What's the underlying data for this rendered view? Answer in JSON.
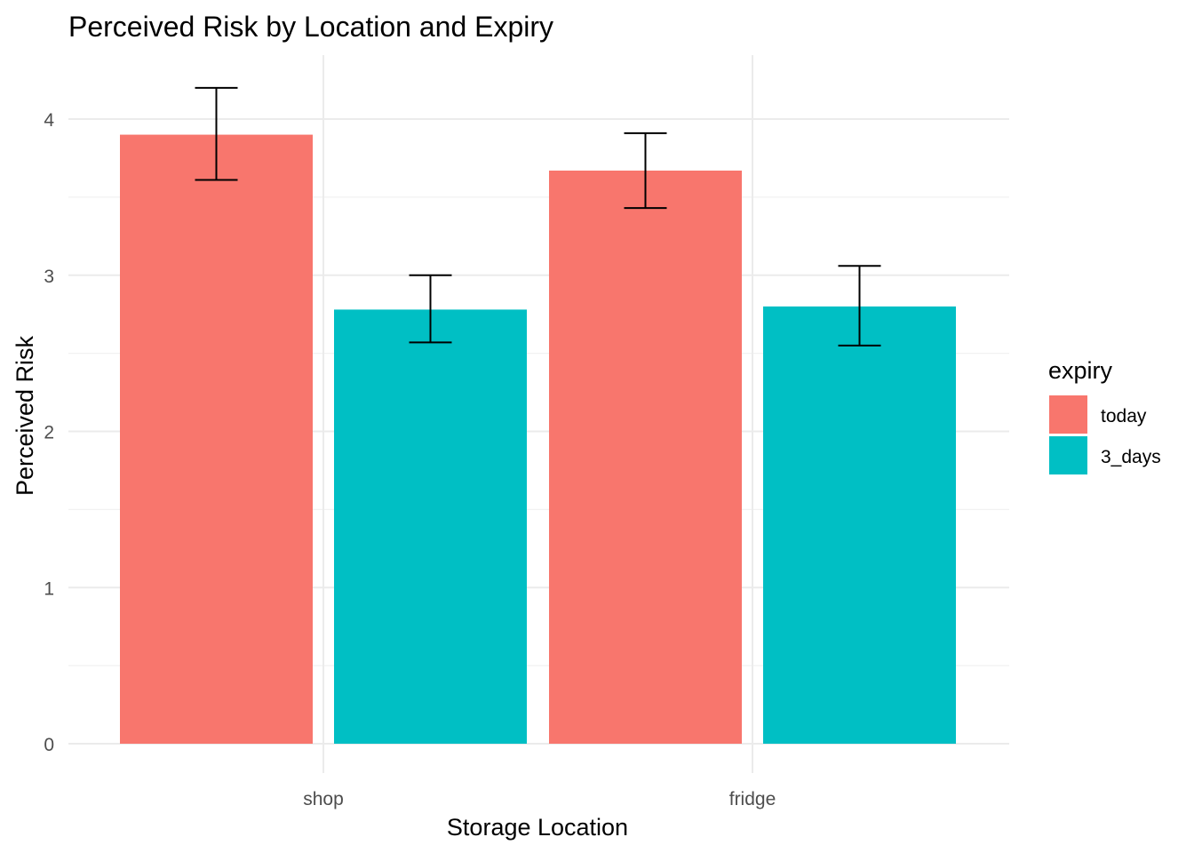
{
  "chart_data": {
    "type": "bar",
    "title": "Perceived Risk by Location and Expiry",
    "xlabel": "Storage Location",
    "ylabel": "Perceived Risk",
    "categories": [
      "shop",
      "fridge"
    ],
    "ylim": [
      0,
      4.3
    ],
    "yticks": [
      0,
      1,
      2,
      3,
      4
    ],
    "grid": true,
    "legend": {
      "title": "expiry",
      "position": "right"
    },
    "series": [
      {
        "name": "today",
        "color": "#F8766D",
        "values": [
          3.9,
          3.67
        ],
        "error_low": [
          3.61,
          3.43
        ],
        "error_high": [
          4.2,
          3.91
        ]
      },
      {
        "name": "3_days",
        "color": "#00BFC4",
        "values": [
          2.78,
          2.8
        ],
        "error_low": [
          2.57,
          2.55
        ],
        "error_high": [
          3.0,
          3.06
        ]
      }
    ]
  }
}
